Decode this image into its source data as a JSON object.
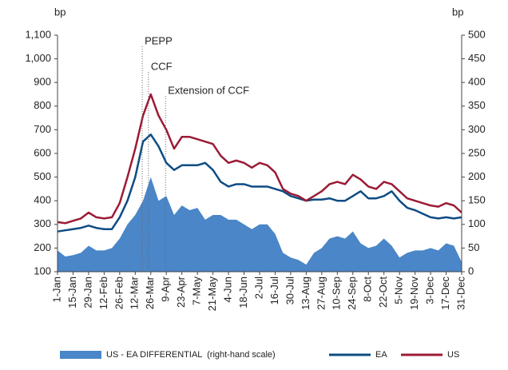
{
  "chart_data": {
    "type": "line",
    "y_label": "bp",
    "y2_label": "bp",
    "annotations": [
      "PEPP",
      "CCF",
      "Extension of CCF"
    ],
    "categories": [
      "1-Jan",
      null,
      "15-Jan",
      null,
      "29-Jan",
      null,
      "12-Feb",
      null,
      "26-Feb",
      null,
      "12-Mar",
      null,
      "26-Mar",
      null,
      "9-Apr",
      null,
      "23-Apr",
      null,
      "7-May",
      null,
      "21-May",
      null,
      "4-Jun",
      null,
      "18-Jun",
      null,
      "2-Jul",
      null,
      "16-Jul",
      null,
      "30-Jul",
      null,
      "13-Aug",
      null,
      "27-Aug",
      null,
      "10-Sep",
      null,
      "24-Sep",
      null,
      "8-Oct",
      null,
      "22-Oct",
      null,
      "5-Nov",
      null,
      "19-Nov",
      null,
      "3-Dec",
      null,
      "17-Dec",
      null,
      "31-Dec"
    ],
    "series": [
      {
        "name": "US - EA DIFFERENTIAL  (right-hand scale)",
        "color": "#4a86c8",
        "axis": "y2",
        "kind": "area",
        "values": [
          45,
          32,
          35,
          40,
          55,
          45,
          45,
          50,
          70,
          100,
          120,
          150,
          200,
          150,
          160,
          120,
          140,
          130,
          135,
          110,
          120,
          120,
          110,
          110,
          100,
          90,
          100,
          100,
          80,
          40,
          30,
          25,
          15,
          40,
          50,
          70,
          75,
          70,
          85,
          60,
          50,
          55,
          70,
          55,
          30,
          40,
          45,
          45,
          50,
          45,
          60,
          55,
          20
        ]
      },
      {
        "name": "EA",
        "color": "#0d4c83",
        "values": [
          270,
          275,
          280,
          285,
          295,
          285,
          280,
          280,
          330,
          400,
          500,
          650,
          680,
          630,
          560,
          530,
          550,
          550,
          550,
          560,
          530,
          480,
          460,
          470,
          470,
          460,
          460,
          460,
          450,
          440,
          420,
          410,
          400,
          405,
          405,
          410,
          400,
          400,
          420,
          440,
          410,
          410,
          420,
          440,
          400,
          370,
          360,
          345,
          330,
          325,
          330,
          325,
          330
        ]
      },
      {
        "name": "US",
        "color": "#9b1b35",
        "values": [
          310,
          305,
          315,
          325,
          350,
          330,
          325,
          330,
          390,
          500,
          620,
          760,
          850,
          760,
          700,
          620,
          670,
          670,
          660,
          650,
          640,
          590,
          560,
          570,
          560,
          540,
          560,
          550,
          520,
          450,
          430,
          420,
          400,
          420,
          440,
          470,
          480,
          470,
          510,
          490,
          460,
          450,
          480,
          470,
          440,
          410,
          400,
          390,
          380,
          375,
          390,
          380,
          350
        ]
      }
    ],
    "ylim": [
      100,
      1100
    ],
    "yticks": [
      100,
      200,
      300,
      400,
      500,
      600,
      700,
      800,
      900,
      {
        "value": 1000,
        "label": "1,000"
      },
      {
        "value": 1100,
        "label": "1,100"
      }
    ],
    "y2lim": [
      0,
      500
    ],
    "y2ticks": [
      0,
      50,
      100,
      150,
      200,
      250,
      300,
      350,
      400,
      450,
      500
    ]
  }
}
